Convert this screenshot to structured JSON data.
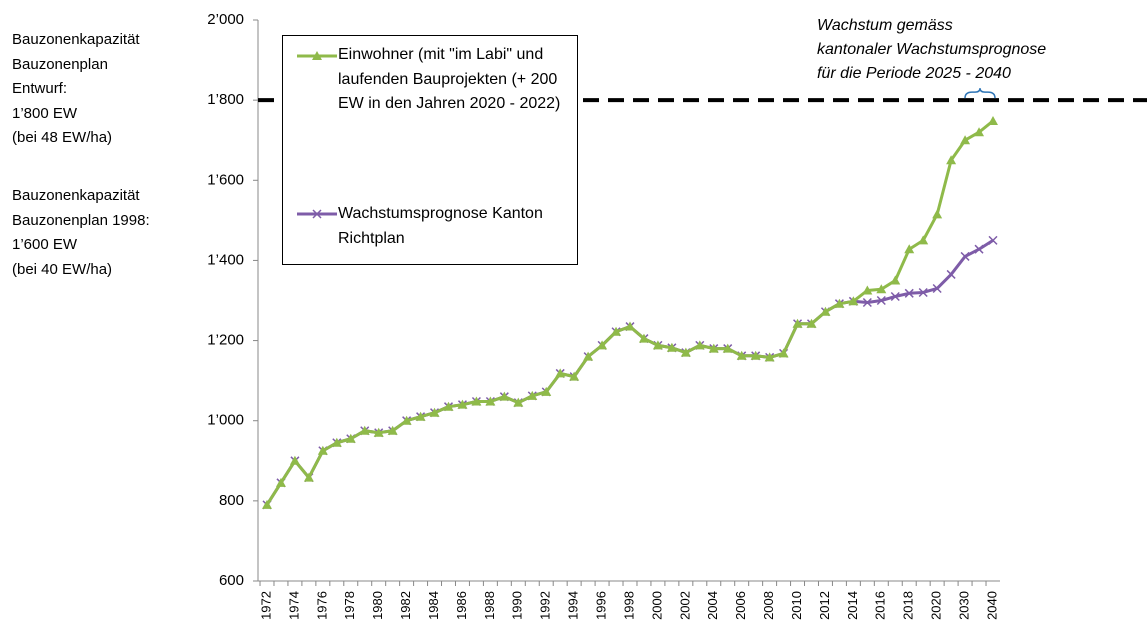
{
  "chart_data": {
    "type": "line",
    "categories": [
      "1972",
      null,
      "1974",
      null,
      "1976",
      null,
      "1978",
      null,
      "1980",
      null,
      "1982",
      null,
      "1984",
      null,
      "1986",
      null,
      "1988",
      null,
      "1990",
      null,
      "1992",
      null,
      "1994",
      null,
      "1996",
      null,
      "1998",
      null,
      "2000",
      null,
      "2002",
      null,
      "2004",
      null,
      "2006",
      null,
      "2008",
      null,
      "2010",
      null,
      "2012",
      null,
      "2014",
      null,
      "2016",
      null,
      "2018",
      null,
      "2020",
      null,
      "2030",
      null,
      "2040"
    ],
    "series": [
      {
        "name": "Einwohner (mit \"im Labi\" und laufenden Bauprojekten (+ 200 EW in den Jahren 2020 - 2022)",
        "color": "#8fba4a",
        "values": [
          790,
          845,
          900,
          858,
          925,
          945,
          955,
          975,
          970,
          975,
          1000,
          1010,
          1020,
          1035,
          1040,
          1048,
          1048,
          1060,
          1045,
          1062,
          1072,
          1118,
          1110,
          1160,
          1188,
          1222,
          1235,
          1205,
          1188,
          1182,
          1170,
          1188,
          1180,
          1180,
          1162,
          1162,
          1158,
          1168,
          1242,
          1242,
          1272,
          1292,
          1298,
          1325,
          1328,
          1350,
          1428,
          1450,
          1515,
          1650,
          1700,
          1720,
          1748
        ]
      },
      {
        "name": "Wachstumsprognose Kanton Richtplan",
        "color": "#7e5ca8",
        "values": [
          790,
          845,
          900,
          858,
          925,
          945,
          955,
          975,
          970,
          975,
          1000,
          1010,
          1020,
          1035,
          1040,
          1048,
          1048,
          1060,
          1045,
          1062,
          1072,
          1118,
          1110,
          1160,
          1188,
          1222,
          1235,
          1205,
          1188,
          1182,
          1170,
          1188,
          1180,
          1180,
          1162,
          1162,
          1158,
          1168,
          1242,
          1242,
          1272,
          1292,
          1298,
          1295,
          1300,
          1310,
          1318,
          1320,
          1330,
          1365,
          1410,
          1428,
          1450
        ]
      }
    ],
    "ylim": [
      600,
      2000
    ],
    "yticks": [
      600,
      800,
      {
        "value": 1000,
        "label": "1’000"
      },
      {
        "value": 1200,
        "label": "1’200"
      },
      {
        "value": 1400,
        "label": "1’400"
      },
      {
        "value": 1600,
        "label": "1’600"
      },
      {
        "value": 1800,
        "label": "1’800"
      },
      {
        "value": 2000,
        "label": "2’000"
      }
    ],
    "reference_line": 1800,
    "notes": [
      [
        "Bauzonenkapazität",
        "Bauzonenplan",
        "Entwurf:",
        "1’800 EW",
        "(bei 48 EW/ha)"
      ],
      [
        "Bauzonenkapazität",
        "Bauzonenplan 1998:",
        "1’600 EW",
        "(bei 40 EW/ha)"
      ]
    ],
    "annotation": [
      "Wachstum gemäss",
      "kantonaler Wachstumsprognose",
      "für die Periode 2025 - 2040"
    ],
    "grid": false
  }
}
